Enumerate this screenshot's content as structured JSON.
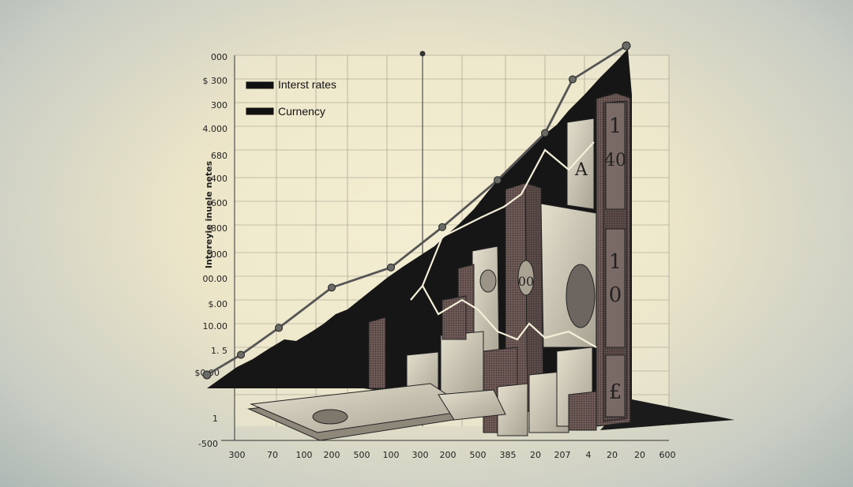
{
  "chart_data": {
    "type": "line",
    "title": "",
    "xlabel": "",
    "ylabel": "Intereyie inuele netes",
    "y_tick_labels": [
      "000",
      "$ 300",
      "300",
      "4.000",
      "680",
      "400",
      "600",
      "800",
      "000",
      "00.00",
      "$.00",
      "10.00",
      "1. 5",
      "$0.00",
      "1",
      "-500"
    ],
    "x_tick_labels": [
      "300",
      "70",
      "100",
      "200",
      "500",
      "100",
      "300",
      "200",
      "500",
      "385",
      "20",
      "207",
      "4",
      "20",
      "20",
      "600"
    ],
    "legend": [
      "Interst rates",
      "Curnency"
    ],
    "legend_position": "top-left",
    "grid": true,
    "series": [
      {
        "name": "Interst rates",
        "color": "#555555",
        "values": [
          4,
          10,
          18,
          30,
          36,
          48,
          62,
          76,
          92,
          102
        ]
      },
      {
        "name": "Curnency",
        "color": "#f4efd9",
        "values": [
          18,
          38,
          50,
          60,
          66,
          78
        ]
      }
    ],
    "bill_labels": [
      "1",
      "40",
      "1",
      "0",
      "£",
      "A",
      "00"
    ],
    "colors": {
      "area": "#161616",
      "bills": "#c9c3b2",
      "background": "#efe8cc"
    }
  }
}
